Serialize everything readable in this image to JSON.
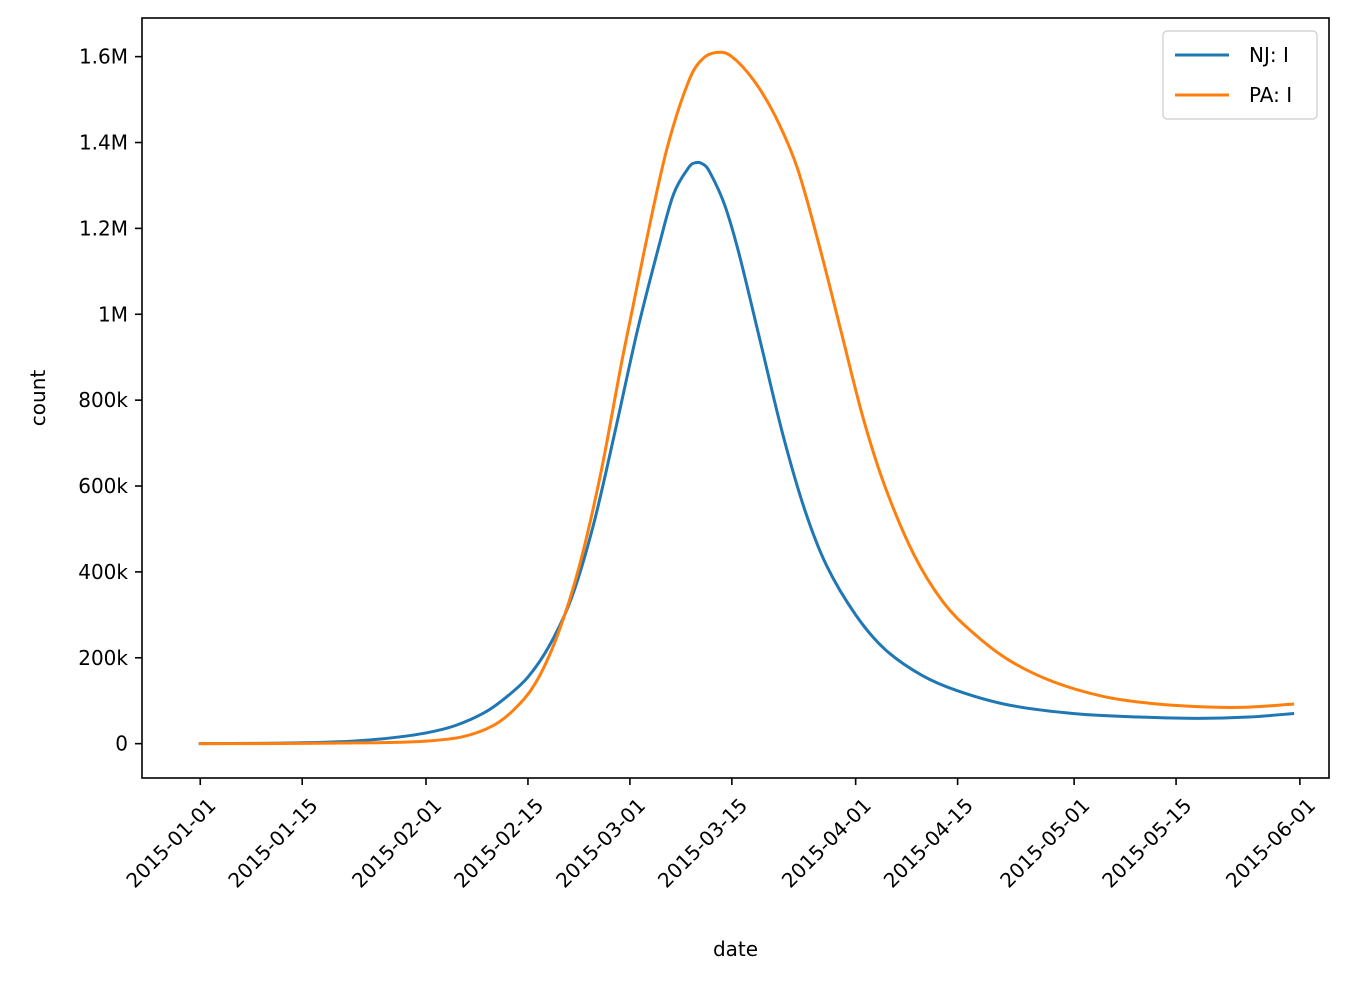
{
  "chart_data": {
    "type": "line",
    "xlabel": "date",
    "ylabel": "count",
    "x_type": "date",
    "xlim": [
      "2014-12-24",
      "2015-06-05"
    ],
    "ylim": [
      -80000,
      1690000
    ],
    "x_ticks": [
      "2015-01-01",
      "2015-01-15",
      "2015-02-01",
      "2015-02-15",
      "2015-03-01",
      "2015-03-15",
      "2015-04-01",
      "2015-04-15",
      "2015-05-01",
      "2015-05-15",
      "2015-06-01"
    ],
    "y_ticks": [
      {
        "value": 0,
        "label": "0"
      },
      {
        "value": 200000,
        "label": "200k"
      },
      {
        "value": 400000,
        "label": "400k"
      },
      {
        "value": 600000,
        "label": "600k"
      },
      {
        "value": 800000,
        "label": "800k"
      },
      {
        "value": 1000000,
        "label": "1M"
      },
      {
        "value": 1200000,
        "label": "1.2M"
      },
      {
        "value": 1400000,
        "label": "1.4M"
      },
      {
        "value": 1600000,
        "label": "1.6M"
      }
    ],
    "grid": false,
    "legend": {
      "placement": "top-right"
    },
    "series": [
      {
        "name": "NJ: I",
        "color": "#1f77b4",
        "points": [
          [
            "2015-01-01",
            0
          ],
          [
            "2015-01-08",
            500
          ],
          [
            "2015-01-15",
            2000
          ],
          [
            "2015-01-22",
            6000
          ],
          [
            "2015-01-27",
            13000
          ],
          [
            "2015-02-01",
            25000
          ],
          [
            "2015-02-05",
            42000
          ],
          [
            "2015-02-09",
            72000
          ],
          [
            "2015-02-12",
            108000
          ],
          [
            "2015-02-15",
            155000
          ],
          [
            "2015-02-18",
            230000
          ],
          [
            "2015-02-21",
            340000
          ],
          [
            "2015-02-24",
            510000
          ],
          [
            "2015-02-27",
            730000
          ],
          [
            "2015-03-02",
            960000
          ],
          [
            "2015-03-05",
            1160000
          ],
          [
            "2015-03-07",
            1280000
          ],
          [
            "2015-03-09",
            1340000
          ],
          [
            "2015-03-10",
            1353000
          ],
          [
            "2015-03-11",
            1350000
          ],
          [
            "2015-03-12",
            1330000
          ],
          [
            "2015-03-14",
            1255000
          ],
          [
            "2015-03-16",
            1140000
          ],
          [
            "2015-03-19",
            930000
          ],
          [
            "2015-03-22",
            720000
          ],
          [
            "2015-03-25",
            545000
          ],
          [
            "2015-03-28",
            415000
          ],
          [
            "2015-04-01",
            300000
          ],
          [
            "2015-04-05",
            220000
          ],
          [
            "2015-04-10",
            160000
          ],
          [
            "2015-04-15",
            123000
          ],
          [
            "2015-04-22",
            90000
          ],
          [
            "2015-05-01",
            70000
          ],
          [
            "2015-05-10",
            62000
          ],
          [
            "2015-05-18",
            59000
          ],
          [
            "2015-05-25",
            62000
          ],
          [
            "2015-05-31",
            70000
          ]
        ]
      },
      {
        "name": "PA: I",
        "color": "#ff7f0e",
        "points": [
          [
            "2015-01-01",
            0
          ],
          [
            "2015-01-15",
            500
          ],
          [
            "2015-01-25",
            2000
          ],
          [
            "2015-02-01",
            6000
          ],
          [
            "2015-02-06",
            16000
          ],
          [
            "2015-02-10",
            40000
          ],
          [
            "2015-02-13",
            78000
          ],
          [
            "2015-02-16",
            140000
          ],
          [
            "2015-02-19",
            250000
          ],
          [
            "2015-02-22",
            410000
          ],
          [
            "2015-02-25",
            630000
          ],
          [
            "2015-02-28",
            900000
          ],
          [
            "2015-03-03",
            1150000
          ],
          [
            "2015-03-06",
            1380000
          ],
          [
            "2015-03-09",
            1540000
          ],
          [
            "2015-03-11",
            1595000
          ],
          [
            "2015-03-13",
            1610000
          ],
          [
            "2015-03-15",
            1600000
          ],
          [
            "2015-03-18",
            1545000
          ],
          [
            "2015-03-21",
            1460000
          ],
          [
            "2015-03-24",
            1340000
          ],
          [
            "2015-03-27",
            1160000
          ],
          [
            "2015-03-30",
            960000
          ],
          [
            "2015-04-02",
            760000
          ],
          [
            "2015-04-05",
            600000
          ],
          [
            "2015-04-09",
            440000
          ],
          [
            "2015-04-13",
            330000
          ],
          [
            "2015-04-17",
            260000
          ],
          [
            "2015-04-22",
            195000
          ],
          [
            "2015-04-28",
            145000
          ],
          [
            "2015-05-05",
            110000
          ],
          [
            "2015-05-12",
            93000
          ],
          [
            "2015-05-20",
            85000
          ],
          [
            "2015-05-25",
            85000
          ],
          [
            "2015-05-31",
            92000
          ]
        ]
      }
    ]
  }
}
